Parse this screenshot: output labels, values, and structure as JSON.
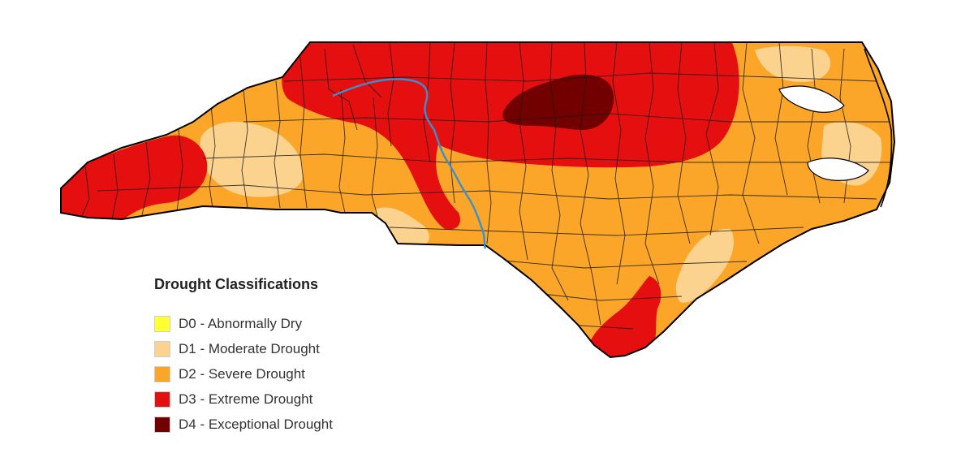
{
  "legend": {
    "title": "Drought Classifications",
    "items": [
      {
        "code": "D0",
        "label": "D0 - Abnormally Dry",
        "color": "#FFFF33"
      },
      {
        "code": "D1",
        "label": "D1 - Moderate Drought",
        "color": "#FCD38E"
      },
      {
        "code": "D2",
        "label": "D2 - Severe Drought",
        "color": "#FBA628"
      },
      {
        "code": "D3",
        "label": "D3 - Extreme Drought",
        "color": "#E60F0F"
      },
      {
        "code": "D4",
        "label": "D4 - Exceptional Drought",
        "color": "#730000"
      }
    ]
  },
  "map": {
    "region": "North Carolina",
    "divide_line_color": "#3A8FD0",
    "county_border_color": "#1a1a1a"
  }
}
